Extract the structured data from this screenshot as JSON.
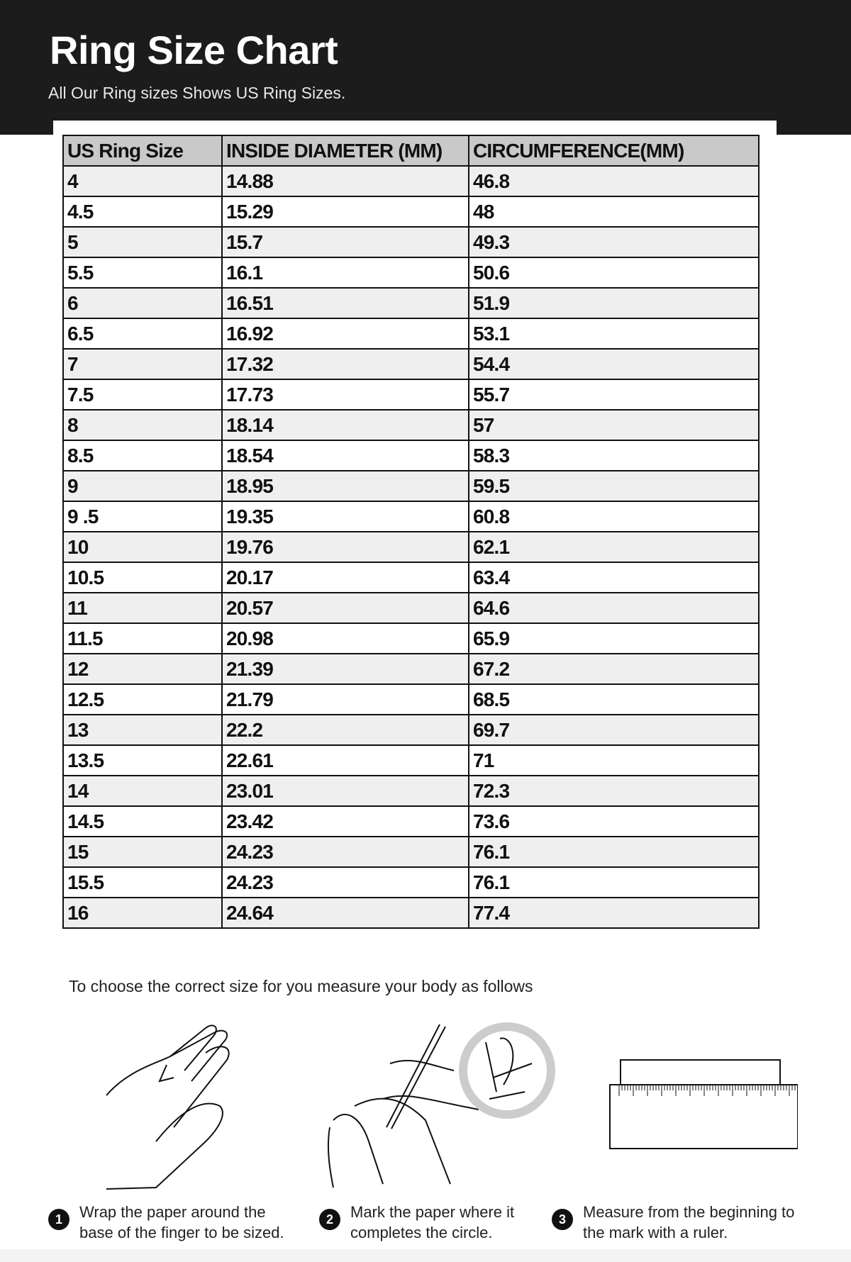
{
  "header": {
    "title": "Ring Size Chart",
    "subtitle": "All Our Ring sizes Shows US Ring Sizes."
  },
  "table": {
    "columns": [
      "US Ring Size",
      "INSIDE DIAMETER (MM)",
      "CIRCUMFERENCE(MM)"
    ],
    "rows": [
      [
        "4",
        "14.88",
        "46.8"
      ],
      [
        "4.5",
        "15.29",
        "48"
      ],
      [
        "5",
        "15.7",
        "49.3"
      ],
      [
        "5.5",
        "16.1",
        "50.6"
      ],
      [
        "6",
        "16.51",
        "51.9"
      ],
      [
        "6.5",
        "16.92",
        "53.1"
      ],
      [
        "7",
        "17.32",
        "54.4"
      ],
      [
        "7.5",
        "17.73",
        "55.7"
      ],
      [
        "8",
        "18.14",
        "57"
      ],
      [
        "8.5",
        "18.54",
        "58.3"
      ],
      [
        "9",
        "18.95",
        "59.5"
      ],
      [
        "9 .5",
        "19.35",
        "60.8"
      ],
      [
        "10",
        "19.76",
        "62.1"
      ],
      [
        "10.5",
        "20.17",
        "63.4"
      ],
      [
        "11",
        "20.57",
        "64.6"
      ],
      [
        "11.5",
        "20.98",
        "65.9"
      ],
      [
        "12",
        "21.39",
        "67.2"
      ],
      [
        "12.5",
        "21.79",
        "68.5"
      ],
      [
        "13",
        "22.2",
        "69.7"
      ],
      [
        "13.5",
        "22.61",
        "71"
      ],
      [
        "14",
        "23.01",
        "72.3"
      ],
      [
        "14.5",
        "23.42",
        "73.6"
      ],
      [
        "15",
        "24.23",
        "76.1"
      ],
      [
        "15.5",
        "24.23",
        "76.1"
      ],
      [
        "16",
        "24.64",
        "77.4"
      ]
    ]
  },
  "instructions": {
    "intro": "To choose the correct size for you measure your body as follows",
    "steps": [
      {
        "number": "1",
        "line1": "Wrap the paper around the",
        "line2": "base of the finger to be sized.",
        "icon": "hand-wrap-illustration"
      },
      {
        "number": "2",
        "line1": "Mark the paper where it",
        "line2": "completes the circle.",
        "icon": "pen-mark-illustration"
      },
      {
        "number": "3",
        "line1": "Measure from the beginning to",
        "line2": "the mark with a ruler.",
        "icon": "ruler-illustration"
      }
    ]
  }
}
